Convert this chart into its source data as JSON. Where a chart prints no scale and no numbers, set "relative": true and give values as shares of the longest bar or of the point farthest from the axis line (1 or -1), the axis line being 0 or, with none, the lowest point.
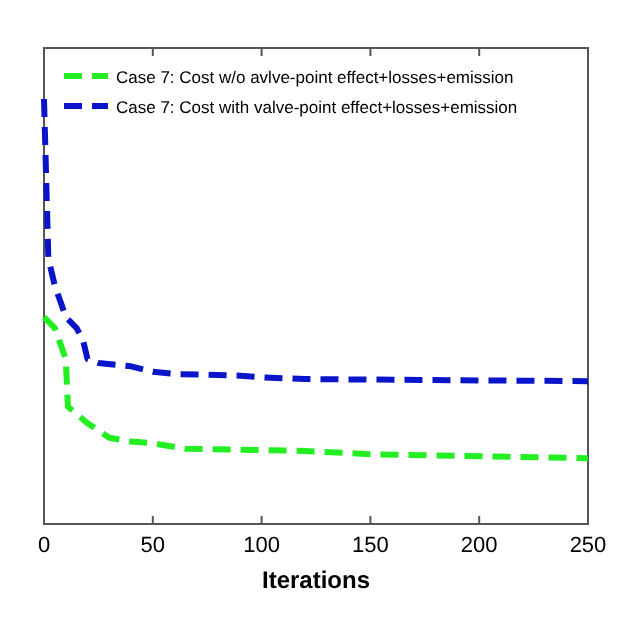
{
  "chart_data": {
    "type": "line",
    "relative": true,
    "xlabel": "Iterations",
    "xlim": [
      0,
      250
    ],
    "xticks": [
      0,
      50,
      100,
      150,
      200,
      250
    ],
    "legend": "top right",
    "line_style": "dashed",
    "series": [
      {
        "name": "Case 7: Cost w/o avlve-point effect+losses+emission",
        "color": "#22ee22",
        "x": [
          0,
          5,
          10,
          11,
          15,
          20,
          30,
          40,
          50,
          65,
          120,
          150,
          250
        ],
        "values": [
          0.487,
          0.461,
          0.388,
          0.276,
          0.259,
          0.237,
          0.203,
          0.194,
          0.19,
          0.177,
          0.172,
          0.164,
          0.155
        ]
      },
      {
        "name": "Case 7: Cost with valve-point effect+losses+emission",
        "color": "#0a14c8",
        "x": [
          0,
          2,
          5,
          8,
          10,
          15,
          18,
          20,
          25,
          40,
          50,
          60,
          90,
          100,
          120,
          250
        ],
        "values": [
          1,
          0.625,
          0.56,
          0.517,
          0.487,
          0.461,
          0.431,
          0.388,
          0.379,
          0.371,
          0.358,
          0.353,
          0.349,
          0.345,
          0.341,
          0.336
        ]
      }
    ]
  }
}
